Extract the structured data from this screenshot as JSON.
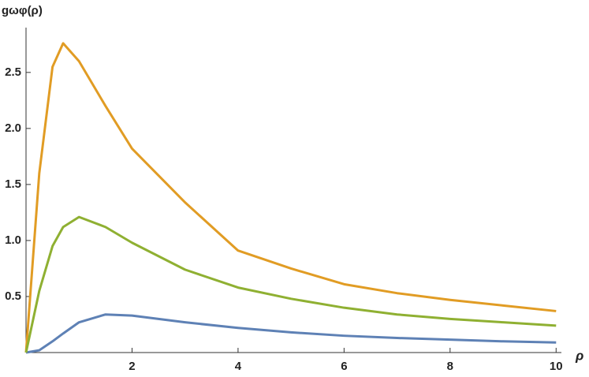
{
  "chart_data": {
    "type": "line",
    "x_label": "ρ",
    "y_label": "gωφ(ρ)",
    "x": [
      0,
      0.25,
      0.5,
      0.7,
      1,
      1.5,
      2,
      3,
      4,
      5,
      6,
      7,
      8,
      9,
      10
    ],
    "series": [
      {
        "color": "#5e81b5",
        "values": [
          0,
          0.02,
          0.1,
          0.17,
          0.27,
          0.34,
          0.33,
          0.27,
          0.22,
          0.18,
          0.15,
          0.13,
          0.115,
          0.1,
          0.09
        ]
      },
      {
        "color": "#e19c24",
        "values": [
          0,
          1.6,
          2.55,
          2.76,
          2.6,
          2.2,
          1.82,
          1.34,
          0.91,
          0.75,
          0.61,
          0.53,
          0.47,
          0.42,
          0.37
        ]
      },
      {
        "color": "#8fb032",
        "values": [
          0,
          0.55,
          0.95,
          1.12,
          1.21,
          1.12,
          0.98,
          0.74,
          0.58,
          0.48,
          0.4,
          0.34,
          0.3,
          0.27,
          0.24
        ]
      }
    ],
    "xlim": [
      0,
      10.1
    ],
    "ylim": [
      0,
      2.9
    ],
    "xticks": [
      2,
      4,
      6,
      8,
      10
    ],
    "yticks": [
      0.5,
      {
        "value": 1,
        "label": "1.0"
      },
      1.5,
      {
        "value": 2,
        "label": "2.0"
      },
      2.5
    ]
  }
}
